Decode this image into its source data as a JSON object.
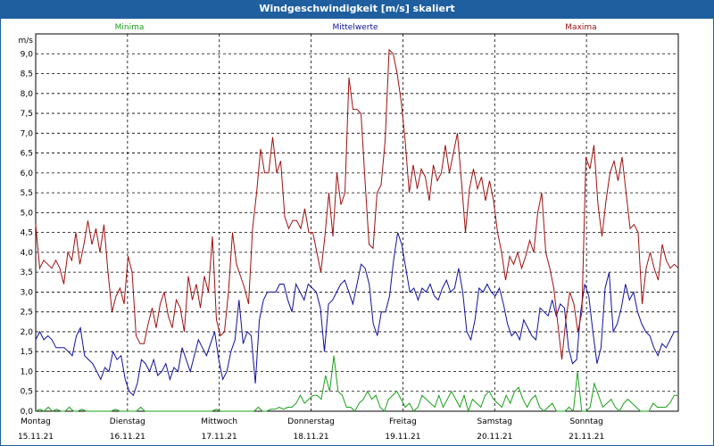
{
  "window": {
    "title": "Windgeschwindigkeit [m/s] skaliert"
  },
  "colors": {
    "minima": "#1aa01a",
    "mittel": "#1010a0",
    "maxima": "#a01010",
    "titlebar": "#1f5fa0"
  },
  "chart_data": {
    "type": "line",
    "ylabel": "m/s",
    "ylim": [
      0,
      9.5
    ],
    "yticks": [
      "0,0",
      "0,5",
      "1,0",
      "1,5",
      "2,0",
      "2,5",
      "3,0",
      "3,5",
      "4,0",
      "4,5",
      "5,0",
      "5,5",
      "6,0",
      "6,5",
      "7,0",
      "7,5",
      "8,0",
      "8,5",
      "9,0"
    ],
    "days": [
      {
        "name": "Montag",
        "date": "15.11.21"
      },
      {
        "name": "Dienstag",
        "date": "16.11.21"
      },
      {
        "name": "Mittwoch",
        "date": "17.11.21"
      },
      {
        "name": "Donnerstag",
        "date": "18.11.21"
      },
      {
        "name": "Freitag",
        "date": "19.11.21"
      },
      {
        "name": "Samstag",
        "date": "20.11.21"
      },
      {
        "name": "Sonntag",
        "date": "21.11.21"
      }
    ],
    "x_range_days": [
      0,
      7
    ],
    "series": [
      {
        "name": "Minima",
        "color": "#1aa01a",
        "values": [
          0.0,
          0.05,
          0.0,
          0.1,
          0.0,
          0.05,
          0.0,
          0.0,
          0.1,
          0.0,
          0.0,
          0.05,
          0.0,
          0.0,
          0.0,
          0.0,
          0.0,
          0.0,
          0.0,
          0.05,
          0.0,
          0.0,
          0.0,
          0.0,
          0.0,
          0.1,
          0.0,
          0.0,
          0.0,
          0.0,
          0.0,
          0.0,
          0.0,
          0.0,
          0.0,
          0.0,
          0.0,
          0.0,
          0.0,
          0.0,
          0.0,
          0.0,
          0.0,
          0.05,
          0.0,
          0.0,
          0.0,
          0.0,
          0.0,
          0.0,
          0.0,
          0.0,
          0.0,
          0.1,
          0.0,
          0.0,
          0.05,
          0.05,
          0.1,
          0.05,
          0.1,
          0.1,
          0.2,
          0.4,
          0.2,
          0.3,
          0.4,
          0.4,
          0.3,
          0.9,
          0.5,
          1.4,
          0.5,
          0.4,
          0.1,
          0.1,
          0.0,
          0.2,
          0.3,
          0.5,
          0.3,
          0.4,
          0.1,
          0.0,
          0.3,
          0.4,
          0.5,
          0.3,
          0.1,
          0.2,
          0.0,
          0.1,
          0.4,
          0.3,
          0.2,
          0.1,
          0.4,
          0.1,
          0.3,
          0.5,
          0.3,
          0.1,
          0.4,
          0.0,
          0.3,
          0.2,
          0.1,
          0.4,
          0.5,
          0.3,
          0.2,
          0.1,
          0.4,
          0.2,
          0.5,
          0.6,
          0.3,
          0.1,
          0.3,
          0.4,
          0.1,
          0.0,
          0.1,
          0.2,
          0.0,
          0.0,
          0.0,
          0.1,
          0.0,
          1.0,
          0.0,
          0.0,
          0.1,
          0.7,
          0.4,
          0.1,
          0.2,
          0.3,
          0.1,
          0.0,
          0.2,
          0.3,
          0.2,
          0.1,
          0.0,
          0.0,
          0.0,
          0.2,
          0.1,
          0.1,
          0.1,
          0.2,
          0.4,
          0.4
        ]
      },
      {
        "name": "Mittelwerte",
        "color": "#1010a0",
        "values": [
          1.8,
          2.0,
          1.8,
          1.9,
          1.8,
          1.6,
          1.6,
          1.6,
          1.5,
          1.4,
          1.9,
          2.1,
          1.4,
          1.3,
          1.2,
          1.0,
          0.8,
          1.1,
          1.0,
          1.5,
          1.3,
          1.4,
          0.8,
          0.5,
          0.4,
          0.7,
          1.3,
          1.2,
          1.0,
          1.3,
          0.9,
          1.0,
          1.2,
          0.8,
          1.1,
          1.0,
          1.6,
          1.3,
          1.0,
          1.4,
          1.8,
          1.6,
          1.4,
          1.7,
          2.0,
          1.3,
          0.8,
          1.0,
          1.5,
          1.8,
          2.8,
          1.7,
          2.0,
          1.9,
          0.7,
          2.3,
          2.8,
          3.0,
          3.0,
          3.0,
          3.2,
          3.2,
          2.8,
          2.5,
          3.2,
          3.0,
          2.8,
          3.2,
          3.1,
          3.0,
          2.6,
          1.5,
          2.7,
          2.8,
          3.0,
          3.2,
          3.3,
          3.0,
          2.7,
          3.2,
          3.7,
          3.6,
          3.2,
          2.2,
          1.9,
          2.5,
          2.5,
          2.9,
          3.8,
          4.5,
          4.2,
          3.6,
          3.0,
          3.1,
          2.8,
          3.1,
          3.0,
          3.2,
          2.9,
          2.8,
          3.1,
          3.3,
          3.0,
          3.1,
          3.6,
          3.0,
          2.0,
          1.8,
          2.3,
          3.1,
          3.0,
          3.2,
          3.0,
          2.9,
          3.1,
          2.7,
          2.2,
          1.9,
          2.0,
          1.8,
          2.3,
          2.1,
          1.9,
          1.8,
          2.6,
          2.5,
          2.4,
          2.8,
          2.4,
          2.7,
          2.6,
          1.6,
          1.2,
          1.3,
          2.5,
          3.2,
          2.9,
          2.0,
          1.2,
          1.6,
          3.1,
          3.5,
          2.0,
          2.2,
          2.6,
          3.2,
          2.8,
          3.0,
          2.5,
          2.2,
          2.0,
          1.9,
          1.6,
          1.4,
          1.7,
          1.6,
          1.8,
          2.0,
          2.0
        ]
      },
      {
        "name": "Maxima",
        "color": "#a01010",
        "values": [
          4.7,
          3.6,
          3.8,
          3.7,
          3.6,
          3.8,
          3.6,
          3.2,
          4.0,
          3.8,
          4.5,
          3.7,
          4.2,
          4.8,
          4.2,
          4.6,
          4.0,
          4.7,
          3.5,
          2.5,
          2.9,
          3.1,
          2.7,
          3.9,
          3.5,
          1.9,
          1.7,
          1.7,
          2.2,
          2.6,
          2.1,
          2.7,
          3.0,
          2.4,
          2.1,
          2.8,
          2.6,
          2.0,
          3.4,
          2.8,
          3.2,
          2.6,
          3.4,
          3.0,
          4.4,
          2.3,
          1.9,
          2.0,
          3.0,
          4.5,
          3.7,
          3.4,
          3.1,
          2.7,
          4.6,
          5.5,
          6.6,
          6.0,
          6.0,
          6.9,
          6.0,
          6.3,
          4.9,
          4.6,
          4.8,
          4.8,
          4.6,
          5.1,
          4.5,
          4.5,
          4.0,
          3.5,
          4.4,
          5.5,
          4.4,
          6.0,
          5.2,
          5.5,
          8.4,
          7.6,
          7.6,
          7.5,
          5.8,
          4.2,
          4.1,
          5.5,
          5.7,
          6.8,
          9.1,
          9.0,
          8.5,
          7.8,
          6.8,
          5.5,
          6.2,
          5.6,
          6.1,
          5.9,
          5.3,
          6.2,
          5.8,
          6.0,
          6.7,
          6.0,
          6.5,
          7.0,
          5.8,
          4.5,
          5.6,
          6.1,
          5.6,
          5.9,
          5.3,
          5.8,
          5.3,
          4.5,
          4.0,
          3.3,
          3.9,
          3.7,
          4.0,
          3.6,
          3.9,
          4.3,
          4.0,
          5.0,
          5.5,
          4.0,
          3.6,
          3.1,
          2.2,
          1.3,
          2.3,
          3.0,
          2.7,
          2.0,
          2.5,
          6.4,
          6.1,
          6.7,
          5.2,
          4.4,
          5.3,
          6.0,
          6.3,
          5.8,
          6.4,
          5.5,
          4.6,
          4.7,
          4.5,
          2.7,
          3.6,
          4.0,
          3.6,
          3.3,
          4.2,
          3.8,
          3.6,
          3.7,
          3.6
        ]
      }
    ]
  }
}
